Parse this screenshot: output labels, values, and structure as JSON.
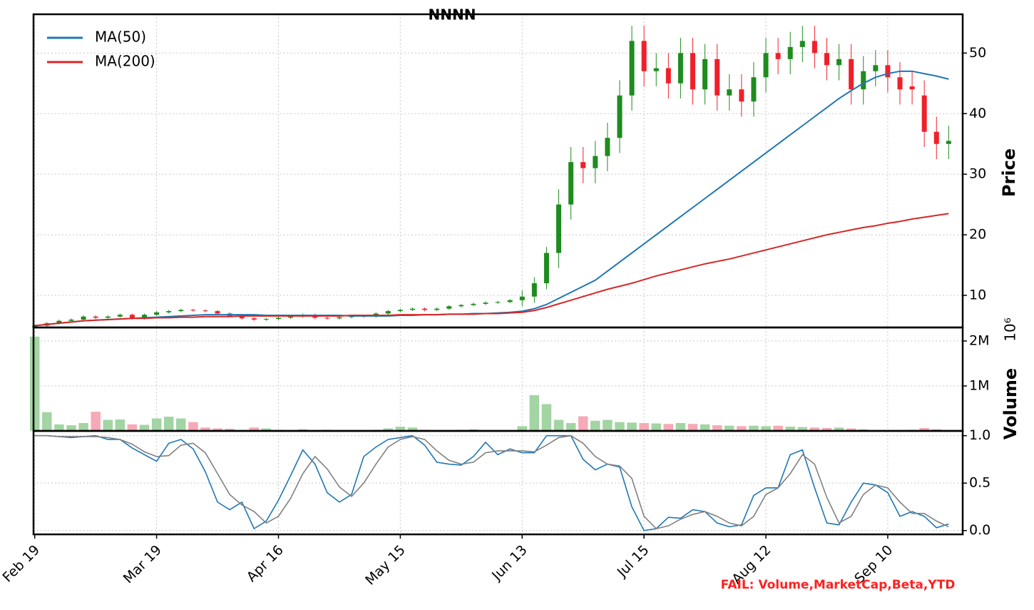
{
  "chart_data": [
    {
      "type": "candlestick",
      "title": "NNNN",
      "ylabel": "Price",
      "x": [
        0,
        2,
        4,
        6,
        8,
        10,
        12,
        14,
        16,
        18,
        20,
        22,
        24,
        26,
        28,
        30,
        32,
        34,
        36,
        38,
        40,
        42,
        44,
        46,
        48,
        50,
        52,
        54,
        56,
        58,
        60,
        62,
        64,
        66,
        68,
        70,
        72,
        74,
        76,
        78,
        80,
        82,
        84,
        86,
        88,
        90,
        92,
        94,
        96,
        98,
        100,
        102,
        104,
        106,
        108,
        110,
        112,
        114,
        116,
        118,
        120,
        122,
        124,
        126,
        128,
        130,
        132,
        134,
        136,
        138,
        140,
        142,
        144,
        146,
        148,
        150
      ],
      "open": [
        4.8,
        5.0,
        5.4,
        5.8,
        6.0,
        6.5,
        6.3,
        6.5,
        6.8,
        6.2,
        6.8,
        7.2,
        7.4,
        7.6,
        7.5,
        7.4,
        7.0,
        6.6,
        6.2,
        6.0,
        6.1,
        6.3,
        6.5,
        6.8,
        6.3,
        6.2,
        6.4,
        6.6,
        6.5,
        7.0,
        7.4,
        7.6,
        7.8,
        7.6,
        7.8,
        8.2,
        8.4,
        8.6,
        8.8,
        8.9,
        9.2,
        9.8,
        12.0,
        17.0,
        25.0,
        32.0,
        31.0,
        33.0,
        36.0,
        43.0,
        52.0,
        47.0,
        47.5,
        45.0,
        50.0,
        44.0,
        49.0,
        43.0,
        44.0,
        42.0,
        46.0,
        50.0,
        49.0,
        51.0,
        52.0,
        50.0,
        48.0,
        49.0,
        44.0,
        47.0,
        48.0,
        46.0,
        44.5,
        43.0,
        37.0,
        35.0
      ],
      "high": [
        5.2,
        5.6,
        6.0,
        6.2,
        6.7,
        6.7,
        6.7,
        7.0,
        7.0,
        7.0,
        7.4,
        7.6,
        7.8,
        7.8,
        7.7,
        7.6,
        7.2,
        6.8,
        6.4,
        6.3,
        6.5,
        6.7,
        7.0,
        7.0,
        6.5,
        6.6,
        6.8,
        6.8,
        7.2,
        7.6,
        7.8,
        8.0,
        8.0,
        8.0,
        8.4,
        8.6,
        8.8,
        9.0,
        9.1,
        9.4,
        10.8,
        13,
        18,
        27.5,
        34.5,
        34.5,
        35.5,
        38.5,
        45.5,
        54.5,
        54.5,
        50,
        50,
        52.5,
        52.5,
        51.5,
        51.5,
        46.5,
        46.5,
        48.5,
        52.5,
        52.5,
        53.5,
        54.5,
        54.5,
        52.5,
        51.5,
        51.5,
        49.5,
        50.5,
        50.5,
        48.5,
        47,
        45.5,
        39.5,
        38
      ],
      "low": [
        4.6,
        4.8,
        5.2,
        5.6,
        5.8,
        6.1,
        6.1,
        6.3,
        6.0,
        6.0,
        6.6,
        7.0,
        7.2,
        7.3,
        7.2,
        6.8,
        6.4,
        6.0,
        5.8,
        5.8,
        5.9,
        6.1,
        6.3,
        6.1,
        6.0,
        6.0,
        6.2,
        6.3,
        6.3,
        6.8,
        7.2,
        7.4,
        7.4,
        7.4,
        7.6,
        8.0,
        8.2,
        8.4,
        8.6,
        8.7,
        8.2,
        8.8,
        11,
        14.5,
        22.5,
        28.5,
        28.5,
        30.5,
        33.5,
        40.5,
        44.5,
        44.5,
        42.5,
        42.5,
        41.5,
        41.5,
        40.5,
        40.5,
        39.5,
        39.5,
        43.5,
        46.5,
        46.5,
        48.5,
        47.5,
        45.5,
        45.5,
        41.5,
        41.5,
        44.5,
        43.5,
        41.5,
        41.5,
        34.5,
        32.5,
        32.5
      ],
      "close": [
        5.0,
        5.4,
        5.8,
        6.0,
        6.5,
        6.3,
        6.5,
        6.8,
        6.2,
        6.8,
        7.2,
        7.4,
        7.6,
        7.5,
        7.4,
        7.0,
        6.6,
        6.2,
        6.0,
        6.1,
        6.3,
        6.5,
        6.8,
        6.3,
        6.2,
        6.4,
        6.6,
        6.5,
        7.0,
        7.4,
        7.6,
        7.8,
        7.6,
        7.8,
        8.2,
        8.4,
        8.6,
        8.8,
        8.9,
        9.2,
        9.8,
        12.0,
        17.0,
        25.0,
        32.0,
        31.0,
        33.0,
        36.0,
        43.0,
        52.0,
        47.0,
        47.5,
        45.0,
        50.0,
        44.0,
        49.0,
        43.0,
        44.0,
        42.0,
        46.0,
        50.0,
        49.0,
        51.0,
        52.0,
        50.0,
        48.0,
        49.0,
        44.0,
        47.0,
        48.0,
        46.0,
        44.0,
        44.0,
        37.0,
        35.0,
        35.5
      ],
      "up_color": "#1e8c1e",
      "down_color": "#f0202a",
      "series": [
        {
          "name": "MA(50)",
          "color": "#1f77b4",
          "values": [
            5.0,
            5.2,
            5.4,
            5.6,
            5.8,
            5.9,
            6.0,
            6.1,
            6.2,
            6.3,
            6.4,
            6.5,
            6.6,
            6.7,
            6.8,
            6.8,
            6.8,
            6.8,
            6.8,
            6.7,
            6.7,
            6.7,
            6.7,
            6.7,
            6.7,
            6.7,
            6.6,
            6.6,
            6.6,
            6.6,
            6.7,
            6.7,
            6.8,
            6.8,
            6.9,
            6.9,
            7.0,
            7.0,
            7.1,
            7.2,
            7.4,
            7.8,
            8.5,
            9.5,
            10.5,
            11.5,
            12.5,
            14.0,
            15.5,
            17.0,
            18.5,
            20.0,
            21.5,
            23.0,
            24.5,
            26.0,
            27.5,
            29.0,
            30.5,
            32.0,
            33.5,
            35.0,
            36.5,
            38.0,
            39.5,
            41.0,
            42.5,
            43.8,
            45.0,
            46.0,
            46.6,
            47.0,
            47.0,
            46.6,
            46.2,
            45.7
          ]
        },
        {
          "name": "MA(200)",
          "color": "#d62728",
          "values": [
            5.0,
            5.2,
            5.4,
            5.6,
            5.8,
            5.9,
            6.0,
            6.1,
            6.2,
            6.2,
            6.3,
            6.3,
            6.4,
            6.4,
            6.5,
            6.5,
            6.5,
            6.6,
            6.6,
            6.6,
            6.6,
            6.6,
            6.6,
            6.6,
            6.6,
            6.6,
            6.7,
            6.7,
            6.7,
            6.7,
            6.8,
            6.8,
            6.8,
            6.8,
            6.9,
            6.9,
            6.9,
            7.0,
            7.0,
            7.1,
            7.2,
            7.5,
            8.0,
            8.6,
            9.2,
            9.8,
            10.4,
            11.0,
            11.5,
            12.0,
            12.6,
            13.2,
            13.7,
            14.2,
            14.7,
            15.2,
            15.6,
            16.0,
            16.5,
            17.0,
            17.5,
            18.0,
            18.5,
            19.0,
            19.5,
            20.0,
            20.4,
            20.8,
            21.2,
            21.5,
            21.9,
            22.2,
            22.6,
            22.9,
            23.2,
            23.5
          ]
        }
      ],
      "xlim": [
        -0.2,
        152.3
      ],
      "ylim": [
        4.7,
        56.4
      ],
      "yticks": [
        10,
        20,
        30,
        40,
        50
      ],
      "grid": true,
      "legend": "upper left"
    },
    {
      "type": "bar",
      "ylabel": "Volume",
      "offset_label": "10⁶",
      "x": [
        0,
        2,
        4,
        6,
        8,
        10,
        12,
        14,
        16,
        18,
        20,
        22,
        24,
        26,
        28,
        30,
        32,
        34,
        36,
        38,
        40,
        42,
        44,
        46,
        48,
        50,
        52,
        54,
        56,
        58,
        60,
        62,
        64,
        66,
        68,
        70,
        72,
        74,
        76,
        78,
        80,
        82,
        84,
        86,
        88,
        90,
        92,
        94,
        96,
        98,
        100,
        102,
        104,
        106,
        108,
        110,
        112,
        114,
        116,
        118,
        120,
        122,
        124,
        126,
        128,
        130,
        132,
        134,
        136,
        138,
        140,
        142,
        144,
        146,
        148,
        150
      ],
      "values": [
        2100000,
        420000,
        150000,
        130000,
        180000,
        430000,
        250000,
        260000,
        150000,
        140000,
        280000,
        320000,
        280000,
        200000,
        80000,
        60000,
        50000,
        20000,
        80000,
        60000,
        30000,
        20000,
        40000,
        20000,
        30000,
        20000,
        10000,
        10000,
        30000,
        60000,
        100000,
        80000,
        30000,
        10000,
        20000,
        30000,
        40000,
        20000,
        20000,
        10000,
        110000,
        800000,
        600000,
        250000,
        180000,
        330000,
        230000,
        250000,
        200000,
        190000,
        180000,
        170000,
        160000,
        180000,
        160000,
        150000,
        130000,
        120000,
        110000,
        120000,
        110000,
        120000,
        100000,
        90000,
        80000,
        70000,
        80000,
        60000,
        40000,
        20000,
        20000,
        10000,
        30000,
        70000,
        40000,
        10000
      ],
      "up_color": "#a3d4a3",
      "down_color": "#f6a9b6",
      "xlim": [
        -0.2,
        152.3
      ],
      "ylim": [
        0,
        2300000
      ],
      "yticks": [
        {
          "value": 1000000,
          "label": "1M"
        },
        {
          "value": 2000000,
          "label": "2M"
        }
      ],
      "grid": true
    },
    {
      "type": "line",
      "x": [
        0,
        2,
        4,
        6,
        8,
        10,
        12,
        14,
        16,
        18,
        20,
        22,
        24,
        26,
        28,
        30,
        32,
        34,
        36,
        38,
        40,
        42,
        44,
        46,
        48,
        50,
        52,
        54,
        56,
        58,
        60,
        62,
        64,
        66,
        68,
        70,
        72,
        74,
        76,
        78,
        80,
        82,
        84,
        86,
        88,
        90,
        92,
        94,
        96,
        98,
        100,
        102,
        104,
        106,
        108,
        110,
        112,
        114,
        116,
        118,
        120,
        122,
        124,
        126,
        128,
        130,
        132,
        134,
        136,
        138,
        140,
        142,
        144,
        146,
        148,
        150
      ],
      "series": [
        {
          "color": "#1f77b4",
          "values": [
            1.0,
            1.0,
            0.99,
            0.98,
            0.99,
            1.0,
            0.96,
            0.96,
            0.87,
            0.8,
            0.73,
            0.92,
            0.96,
            0.86,
            0.62,
            0.3,
            0.22,
            0.3,
            0.02,
            0.1,
            0.32,
            0.58,
            0.85,
            0.7,
            0.4,
            0.3,
            0.38,
            0.78,
            0.88,
            0.96,
            0.98,
            1.0,
            0.9,
            0.72,
            0.7,
            0.69,
            0.78,
            0.93,
            0.8,
            0.86,
            0.82,
            0.82,
            1.0,
            1.0,
            1.0,
            0.75,
            0.64,
            0.7,
            0.67,
            0.25,
            0.0,
            0.02,
            0.14,
            0.13,
            0.22,
            0.2,
            0.08,
            0.04,
            0.06,
            0.37,
            0.45,
            0.45,
            0.8,
            0.85,
            0.45,
            0.08,
            0.06,
            0.3,
            0.5,
            0.48,
            0.4,
            0.15,
            0.2,
            0.15,
            0.03,
            0.07
          ]
        },
        {
          "color": "#808080",
          "values": [
            1.0,
            1.0,
            0.99,
            0.99,
            0.99,
            0.99,
            0.98,
            0.96,
            0.91,
            0.83,
            0.78,
            0.79,
            0.9,
            0.92,
            0.82,
            0.6,
            0.38,
            0.27,
            0.2,
            0.08,
            0.15,
            0.34,
            0.6,
            0.78,
            0.65,
            0.46,
            0.36,
            0.5,
            0.7,
            0.88,
            0.96,
            0.99,
            0.96,
            0.84,
            0.74,
            0.7,
            0.72,
            0.82,
            0.84,
            0.84,
            0.84,
            0.83,
            0.9,
            0.98,
            1.0,
            0.92,
            0.78,
            0.7,
            0.68,
            0.55,
            0.15,
            0.02,
            0.05,
            0.12,
            0.17,
            0.2,
            0.15,
            0.08,
            0.05,
            0.15,
            0.38,
            0.45,
            0.6,
            0.8,
            0.7,
            0.35,
            0.08,
            0.15,
            0.38,
            0.48,
            0.45,
            0.3,
            0.18,
            0.18,
            0.1,
            0.04
          ]
        }
      ],
      "xlim": [
        -0.2,
        152.3
      ],
      "ylim": [
        -0.04,
        1.05
      ],
      "yticks": [
        {
          "value": 0,
          "label": "0.0"
        },
        0.5,
        {
          "value": 1,
          "label": "1.0"
        }
      ],
      "xticks": [
        {
          "value": 0,
          "label": "Feb 19"
        },
        {
          "value": 20,
          "label": "Mar 19"
        },
        {
          "value": 40,
          "label": "Apr 16"
        },
        {
          "value": 60,
          "label": "May 15"
        },
        {
          "value": 80,
          "label": "Jun 13"
        },
        {
          "value": 100,
          "label": "Jul 15"
        },
        {
          "value": 120,
          "label": "Aug 12"
        },
        {
          "value": 140,
          "label": "Sep 10"
        }
      ],
      "grid": true
    }
  ],
  "footer_note": "FAIL: Volume,MarketCap,Beta,YTD"
}
